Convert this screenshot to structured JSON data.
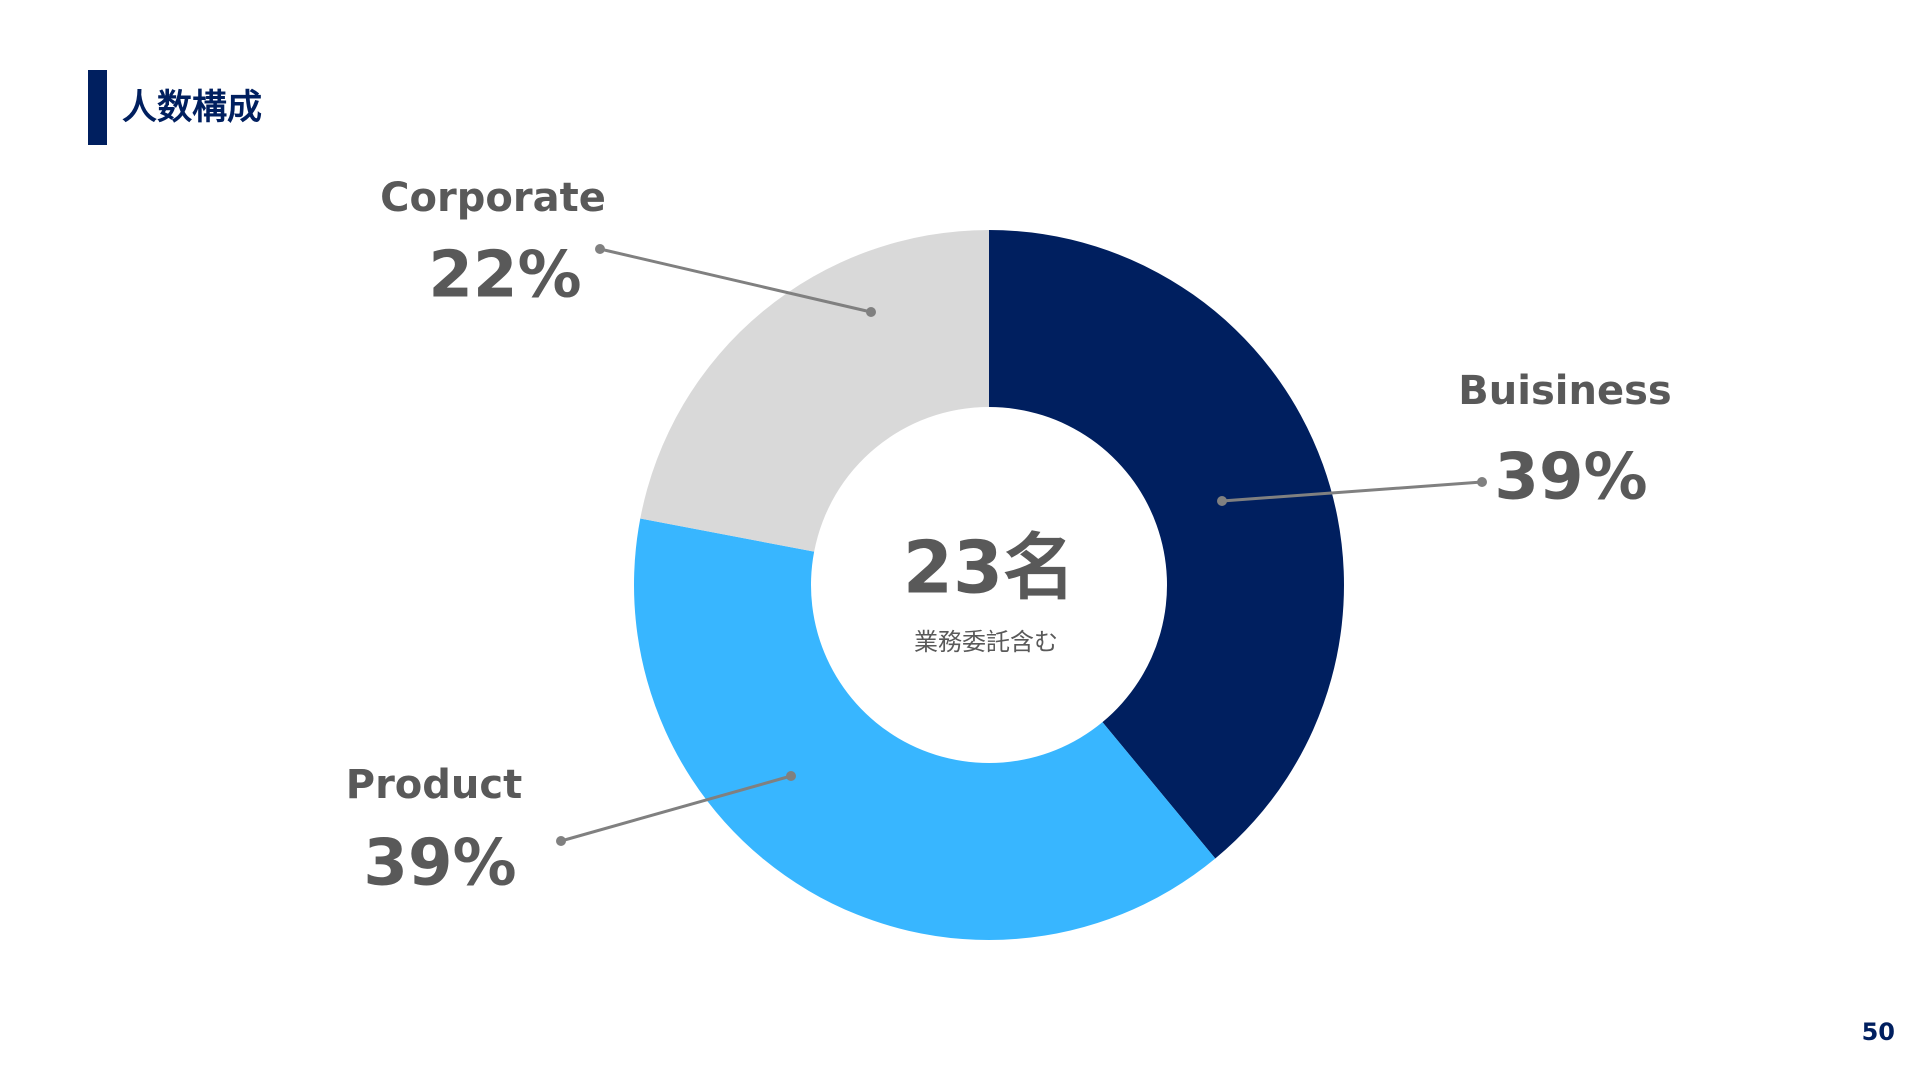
{
  "chart_data": {
    "type": "donut",
    "title": "人数構成",
    "center_label": "23名",
    "center_sublabel": "業務委託含む",
    "page_number": "50",
    "categories": [
      "Buisiness",
      "Product",
      "Corporate"
    ],
    "values": [
      39,
      39,
      22
    ],
    "value_labels": [
      "39%",
      "39%",
      "22%"
    ],
    "colors": [
      "#001f5f",
      "#38b6ff",
      "#d9d9d9"
    ]
  }
}
